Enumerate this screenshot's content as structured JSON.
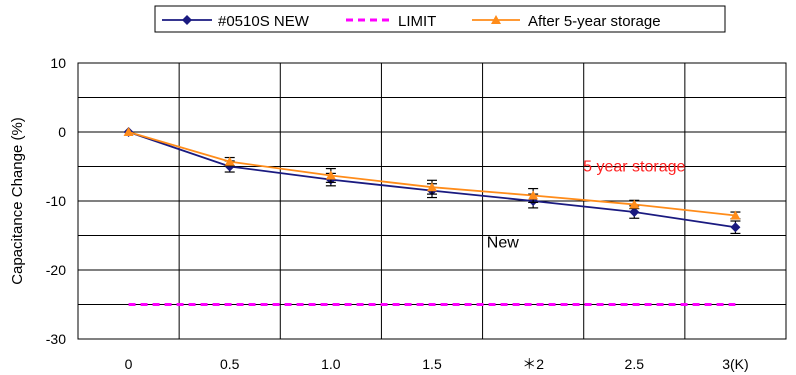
{
  "chart_data": {
    "type": "line",
    "title": "",
    "xlabel": "",
    "ylabel": "Capacitance Change (%)",
    "ylim": [
      -30,
      10
    ],
    "yticks": [
      "10",
      "0",
      "-10",
      "-20",
      "-30"
    ],
    "categories": [
      "0",
      "0.5",
      "1.0",
      "1.5",
      "＊2",
      "2.5",
      "3(K)"
    ],
    "grid": true,
    "legend_position": "top",
    "series": [
      {
        "name": "#0510S NEW",
        "color": "#1a1a80",
        "marker": "diamond",
        "values": [
          0,
          -5.0,
          -6.9,
          -8.5,
          -10.0,
          -11.6,
          -13.8
        ],
        "error": [
          0,
          0.8,
          0.9,
          1.0,
          1.0,
          0.9,
          0.9
        ]
      },
      {
        "name": "LIMIT",
        "color": "#ff00ff",
        "style": "dashed",
        "values": [
          -25,
          -25,
          -25,
          -25,
          -25,
          -25,
          -25
        ]
      },
      {
        "name": "After 5-year storage",
        "color": "#ff8c1a",
        "marker": "triangle",
        "values": [
          0,
          -4.3,
          -6.3,
          -8.0,
          -9.2,
          -10.5,
          -12.1
        ],
        "error": [
          0,
          0.6,
          1.0,
          1.0,
          1.0,
          0.6,
          0.5
        ]
      }
    ],
    "annotations": [
      {
        "text": "5 year storage",
        "color": "#ff2020",
        "x_index": 5.0,
        "y": -5.0
      },
      {
        "text": "New",
        "color": "#000000",
        "x_index": 3.7,
        "y": -16.0
      }
    ]
  }
}
